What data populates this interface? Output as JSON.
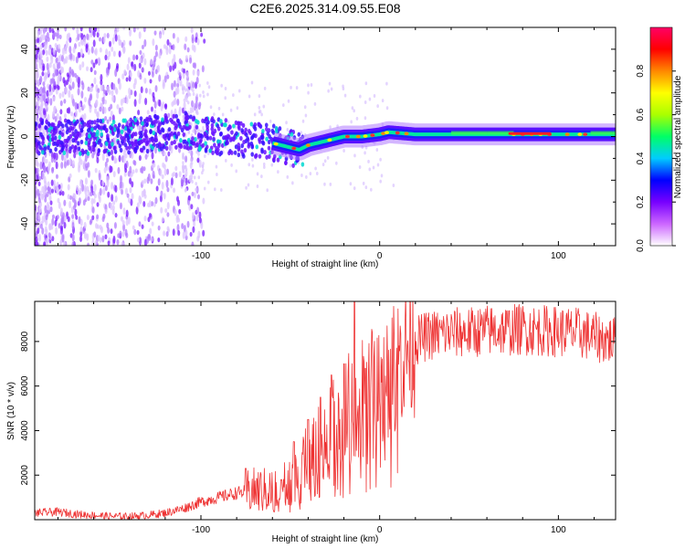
{
  "figure": {
    "title": "C2E6.2025.314.09.55.E08"
  },
  "chart_data": [
    {
      "type": "heatmap",
      "title": "C2E6.2025.314.09.55.E08",
      "xlabel": "Height of straight line (km)",
      "ylabel": "Frequency (Hz)",
      "xlim": [
        -193,
        132
      ],
      "ylim": [
        -50,
        50
      ],
      "xticks": [
        -100,
        0,
        100
      ],
      "yticks": [
        -40,
        -20,
        0,
        20,
        40
      ],
      "grid": false,
      "ridge": {
        "description_free_note": "center frequency of the dominant band",
        "x": [
          -193,
          -150,
          -130,
          -110,
          -90,
          -70,
          -60,
          -50,
          -45,
          -40,
          -30,
          -20,
          -10,
          0,
          5,
          20,
          60,
          100,
          132
        ],
        "y": [
          0,
          0,
          1,
          3,
          0,
          -2,
          -3,
          -5,
          -6,
          -4,
          -2,
          0,
          0,
          1,
          2,
          1,
          1,
          1,
          1
        ]
      },
      "colorbar": {
        "label": "Normalized spectral amplitude",
        "range": [
          0,
          1
        ],
        "ticks": [
          "0.0",
          "0.2",
          "0.4",
          "0.6",
          "0.8"
        ],
        "tick_values": [
          0,
          0.2,
          0.4,
          0.6,
          0.8
        ],
        "colors": [
          "#ffffff",
          "#cc66ff",
          "#7700ff",
          "#0000ff",
          "#00ccff",
          "#00ff66",
          "#aaff00",
          "#ffff00",
          "#ff8800",
          "#ff0000",
          "#ff0066"
        ]
      }
    },
    {
      "type": "line",
      "xlabel": "Height of straight line (km)",
      "ylabel": "SNR (10 * v/v)",
      "xlim": [
        -193,
        132
      ],
      "ylim": [
        0,
        9800
      ],
      "xticks": [
        -100,
        0,
        100
      ],
      "yticks": [
        2000,
        4000,
        6000,
        8000
      ],
      "grid": false,
      "series": [
        {
          "name": "SNR",
          "color": "#ee3333",
          "x": [
            -193,
            -180,
            -170,
            -160,
            -150,
            -140,
            -130,
            -120,
            -110,
            -100,
            -90,
            -80,
            -70,
            -60,
            -50,
            -45,
            -40,
            -35,
            -30,
            -25,
            -20,
            -15,
            -12,
            -10,
            -5,
            0,
            5,
            10,
            15,
            20,
            25,
            30,
            40,
            50,
            60,
            70,
            80,
            90,
            100,
            110,
            120,
            132
          ],
          "y": [
            300,
            350,
            250,
            200,
            150,
            150,
            200,
            300,
            500,
            800,
            1000,
            1200,
            1300,
            1300,
            1600,
            2200,
            2800,
            3300,
            3800,
            4300,
            4800,
            5400,
            5600,
            5800,
            6000,
            6200,
            6600,
            7100,
            7600,
            8000,
            8200,
            8300,
            8400,
            8400,
            8500,
            8500,
            8550,
            8500,
            8450,
            8400,
            8200,
            8000
          ]
        }
      ],
      "spikes": {
        "x": [
          -75,
          -55,
          -48,
          -40,
          -33,
          -27,
          -20,
          -14,
          -8
        ],
        "y": [
          2300,
          1800,
          3500,
          4500,
          5500,
          6500,
          7000,
          9800,
          6800
        ]
      }
    }
  ]
}
